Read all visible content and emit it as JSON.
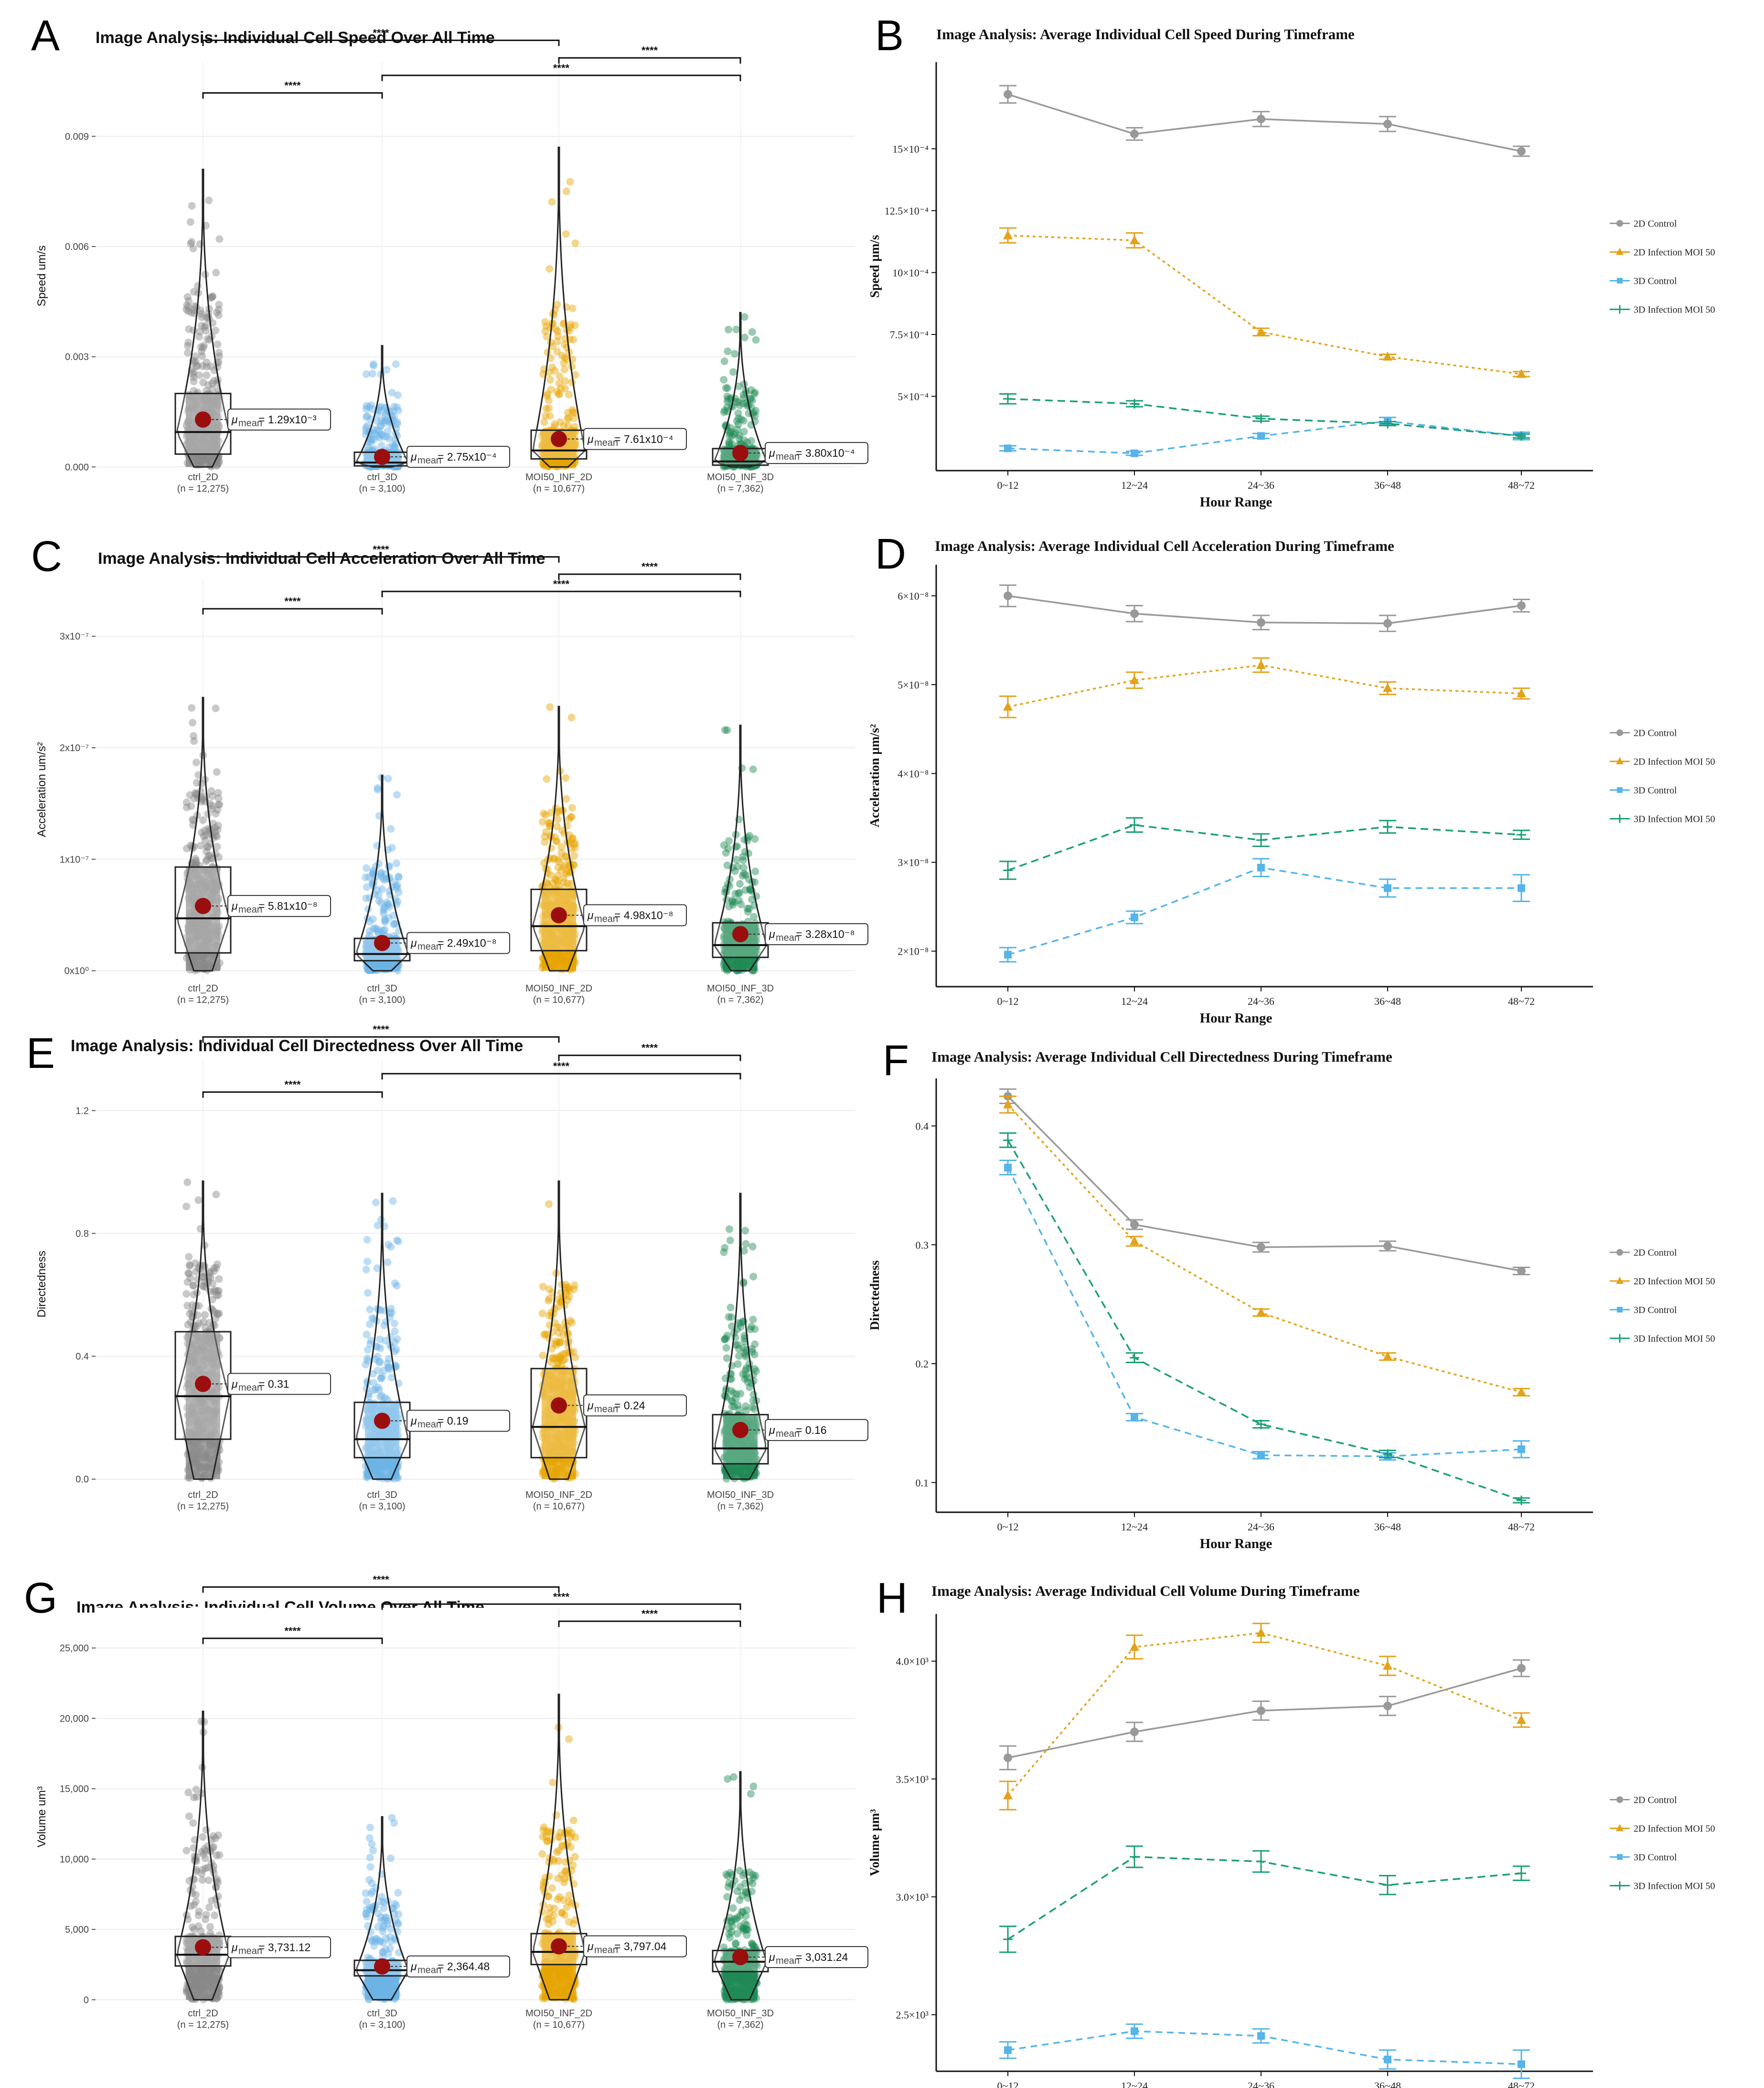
{
  "colors": {
    "ctrl_2D": "#888888",
    "ctrl_3D": "#6cb4e6",
    "MOI50_INF_2D": "#e6a400",
    "MOI50_INF_3D": "#1f8a55",
    "mean_dot": "#9b0e0e",
    "series": [
      "#999999",
      "#e3a21a",
      "#56b4e9",
      "#1a9e77"
    ]
  },
  "legend_entries": [
    "2D Control",
    "2D Infection MOI 50",
    "3D Control",
    "3D Infection MOI 50"
  ],
  "x_range_labels": [
    "0~12",
    "12~24",
    "24~36",
    "36~48",
    "48~72"
  ],
  "x_axis_label": "Hour Range",
  "significance_label": "****",
  "chart_data": [
    {
      "panel": "A",
      "type": "violin+box+jitter",
      "title": "Image Analysis: Individual Cell Speed Over All Time",
      "ylabel": "Speed um/s",
      "ylim": [
        -0.0001,
        0.0105
      ],
      "yticks": [
        0,
        0.003,
        0.006,
        0.009
      ],
      "ytick_labels": [
        "0.000",
        "0.003",
        "0.006",
        "0.009"
      ],
      "categories": [
        "ctrl_2D",
        "ctrl_3D",
        "MOI50_INF_2D",
        "MOI50_INF_3D"
      ],
      "n_labels": [
        "(n = 12,275)",
        "(n = 3,100)",
        "(n = 10,677)",
        "(n = 7,362)"
      ],
      "means": [
        0.00129,
        0.000275,
        0.000761,
        0.00038
      ],
      "mean_labels": [
        "= 1.29x10⁻³",
        "= 2.75x10⁻⁴",
        "= 7.61x10⁻⁴",
        "= 3.80x10⁻⁴"
      ],
      "q1": [
        0.00035,
        3e-05,
        0.00022,
        5e-05
      ],
      "median": [
        0.00095,
        0.00012,
        0.00045,
        0.00015
      ],
      "q3": [
        0.002,
        0.0004,
        0.001,
        0.0005
      ],
      "max": [
        0.0081,
        0.0033,
        0.0087,
        0.0042
      ],
      "comparisons": [
        [
          0,
          1,
          "****"
        ],
        [
          1,
          3,
          "****"
        ],
        [
          2,
          3,
          "****"
        ],
        [
          0,
          2,
          "****"
        ]
      ]
    },
    {
      "panel": "C",
      "type": "violin+box+jitter",
      "title": "Image Analysis: Individual Cell Acceleration Over All Time",
      "ylabel": "Acceleration um/s²",
      "ylim": [
        -1e-08,
        3.35e-07
      ],
      "yticks": [
        0,
        1e-07,
        2e-07,
        3e-07
      ],
      "ytick_labels": [
        "0x10⁰",
        "1x10⁻⁷",
        "2x10⁻⁷",
        "3x10⁻⁷"
      ],
      "categories": [
        "ctrl_2D",
        "ctrl_3D",
        "MOI50_INF_2D",
        "MOI50_INF_3D"
      ],
      "n_labels": [
        "(n = 12,275)",
        "(n = 3,100)",
        "(n = 10,677)",
        "(n = 7,362)"
      ],
      "means": [
        5.81e-08,
        2.49e-08,
        4.98e-08,
        3.28e-08
      ],
      "mean_labels": [
        "= 5.81x10⁻⁸",
        "= 2.49x10⁻⁸",
        "= 4.98x10⁻⁸",
        "= 3.28x10⁻⁸"
      ],
      "q1": [
        1.6e-08,
        9e-09,
        1.8e-08,
        1.2e-08
      ],
      "median": [
        4.7e-08,
        1.5e-08,
        4e-08,
        2.3e-08
      ],
      "q3": [
        9.3e-08,
        2.9e-08,
        7.3e-08,
        4.3e-08
      ],
      "max": [
        2.45e-07,
        1.75e-07,
        2.37e-07,
        2.2e-07
      ],
      "comparisons": [
        [
          0,
          1,
          "****"
        ],
        [
          1,
          3,
          "****"
        ],
        [
          2,
          3,
          "****"
        ],
        [
          0,
          2,
          "****"
        ]
      ]
    },
    {
      "panel": "E",
      "type": "violin+box+jitter",
      "title": "Image Analysis: Individual Cell Directedness Over All Time",
      "ylabel": "Directedness",
      "ylim": [
        -0.03,
        1.3
      ],
      "yticks": [
        0,
        0.4,
        0.8,
        1.2
      ],
      "ytick_labels": [
        "0.0",
        "0.4",
        "0.8",
        "1.2"
      ],
      "categories": [
        "ctrl_2D",
        "ctrl_3D",
        "MOI50_INF_2D",
        "MOI50_INF_3D"
      ],
      "n_labels": [
        "(n = 12,275)",
        "(n = 3,100)",
        "(n = 10,677)",
        "(n = 7,362)"
      ],
      "means": [
        0.31,
        0.19,
        0.24,
        0.16
      ],
      "mean_labels": [
        "= 0.31",
        "= 0.19",
        "= 0.24",
        "= 0.16"
      ],
      "q1": [
        0.13,
        0.07,
        0.07,
        0.05
      ],
      "median": [
        0.27,
        0.13,
        0.17,
        0.1
      ],
      "q3": [
        0.48,
        0.25,
        0.36,
        0.21
      ],
      "max": [
        0.97,
        0.93,
        0.97,
        0.93
      ],
      "comparisons": [
        [
          0,
          1,
          "****"
        ],
        [
          1,
          3,
          "****"
        ],
        [
          2,
          3,
          "****"
        ],
        [
          0,
          2,
          "****"
        ]
      ]
    },
    {
      "panel": "G",
      "type": "violin+box+jitter",
      "title": "Image Analysis: Individual Cell Volume Over All Time",
      "ylabel": "Volume um³",
      "ylim": [
        -500,
        26500
      ],
      "yticks": [
        0,
        5000,
        10000,
        15000,
        20000,
        25000
      ],
      "ytick_labels": [
        "0",
        "5,000",
        "10,000",
        "15,000",
        "20,000",
        "25,000"
      ],
      "categories": [
        "ctrl_2D",
        "ctrl_3D",
        "MOI50_INF_2D",
        "MOI50_INF_3D"
      ],
      "n_labels": [
        "(n = 12,275)",
        "(n = 3,100)",
        "(n = 10,677)",
        "(n = 7,362)"
      ],
      "means": [
        3731.12,
        2364.48,
        3797.04,
        3031.24
      ],
      "mean_labels": [
        "= 3,731.12",
        "= 2,364.48",
        "= 3,797.04",
        "= 3,031.24"
      ],
      "q1": [
        2400,
        1700,
        2500,
        2000
      ],
      "median": [
        3200,
        2100,
        3400,
        2700
      ],
      "q3": [
        4500,
        2800,
        4700,
        3500
      ],
      "max": [
        20500,
        13000,
        21700,
        16200
      ],
      "comparisons": [
        [
          0,
          1,
          "****"
        ],
        [
          2,
          3,
          "****"
        ],
        [
          1,
          3,
          "****"
        ],
        [
          0,
          2,
          "****"
        ]
      ]
    },
    {
      "panel": "B",
      "type": "line",
      "title": "Image Analysis: Average Individual Cell Speed During Timeframe",
      "ylabel": "Speed µm/s",
      "ylim": [
        0.0002,
        0.00185
      ],
      "yticks": [
        0.0005,
        0.00075,
        0.001,
        0.00125,
        0.0015
      ],
      "ytick_labels": [
        "5×10⁻⁴",
        "7.5×10⁻⁴",
        "10×10⁻⁴",
        "12.5×10⁻⁴",
        "15×10⁻⁴"
      ],
      "x": [
        "0~12",
        "12~24",
        "24~36",
        "36~48",
        "48~72"
      ],
      "series": [
        {
          "name": "2D Control",
          "values": [
            0.00172,
            0.00156,
            0.00162,
            0.0016,
            0.00149
          ],
          "err": [
            3.5e-05,
            2.5e-05,
            3e-05,
            3e-05,
            2e-05
          ]
        },
        {
          "name": "2D Infection MOI 50",
          "values": [
            0.00115,
            0.00113,
            0.00076,
            0.00066,
            0.00059
          ],
          "err": [
            3e-05,
            3e-05,
            1.5e-05,
            1e-05,
            1e-05
          ]
        },
        {
          "name": "3D Control",
          "values": [
            0.00029,
            0.00027,
            0.00034,
            0.0004,
            0.00034
          ],
          "err": [
            1e-05,
            8e-06,
            1e-05,
            1.5e-05,
            1.5e-05
          ]
        },
        {
          "name": "3D Infection MOI 50",
          "values": [
            0.00049,
            0.00047,
            0.00041,
            0.00039,
            0.00034
          ],
          "err": [
            2e-05,
            1.2e-05,
            1e-05,
            8e-06,
            8e-06
          ]
        }
      ]
    },
    {
      "panel": "D",
      "type": "line",
      "title": "Image Analysis: Average Individual Cell Acceleration During Timeframe",
      "ylabel": "Acceleration µm/s²",
      "ylim": [
        1.6e-08,
        6.35e-08
      ],
      "yticks": [
        2e-08,
        3e-08,
        4e-08,
        5e-08,
        6e-08
      ],
      "ytick_labels": [
        "2×10⁻⁸",
        "3×10⁻⁸",
        "4×10⁻⁸",
        "5×10⁻⁸",
        "6×10⁻⁸"
      ],
      "x": [
        "0~12",
        "12~24",
        "24~36",
        "36~48",
        "48~72"
      ],
      "series": [
        {
          "name": "2D Control",
          "values": [
            6e-08,
            5.8e-08,
            5.7e-08,
            5.69e-08,
            5.89e-08
          ],
          "err": [
            1.2e-09,
            9e-10,
            8e-10,
            9e-10,
            7e-10
          ]
        },
        {
          "name": "2D Infection MOI 50",
          "values": [
            4.75e-08,
            5.05e-08,
            5.22e-08,
            4.96e-08,
            4.9e-08
          ],
          "err": [
            1.2e-09,
            9e-10,
            8e-10,
            7e-10,
            6e-10
          ]
        },
        {
          "name": "3D Control",
          "values": [
            1.96e-08,
            2.38e-08,
            2.94e-08,
            2.71e-08,
            2.71e-08
          ],
          "err": [
            8e-10,
            7e-10,
            1e-09,
            1e-09,
            1.5e-09
          ]
        },
        {
          "name": "3D Infection MOI 50",
          "values": [
            2.91e-08,
            3.42e-08,
            3.25e-08,
            3.4e-08,
            3.31e-08
          ],
          "err": [
            1e-09,
            8e-10,
            7e-10,
            7e-10,
            5e-10
          ]
        }
      ]
    },
    {
      "panel": "F",
      "type": "line",
      "title": "Image Analysis: Average Individual Cell Directedness During Timeframe",
      "ylabel": "Directedness",
      "ylim": [
        0.075,
        0.44
      ],
      "yticks": [
        0.1,
        0.2,
        0.3,
        0.4
      ],
      "ytick_labels": [
        "0.1",
        "0.2",
        "0.3",
        "0.4"
      ],
      "x": [
        "0~12",
        "12~24",
        "24~36",
        "36~48",
        "48~72"
      ],
      "series": [
        {
          "name": "2D Control",
          "values": [
            0.425,
            0.317,
            0.298,
            0.299,
            0.278
          ],
          "err": [
            0.006,
            0.004,
            0.004,
            0.004,
            0.003
          ]
        },
        {
          "name": "2D Infection MOI 50",
          "values": [
            0.418,
            0.303,
            0.243,
            0.206,
            0.176
          ],
          "err": [
            0.007,
            0.004,
            0.003,
            0.003,
            0.003
          ]
        },
        {
          "name": "3D Control",
          "values": [
            0.365,
            0.155,
            0.123,
            0.122,
            0.128
          ],
          "err": [
            0.006,
            0.003,
            0.003,
            0.003,
            0.007
          ]
        },
        {
          "name": "3D Infection MOI 50",
          "values": [
            0.388,
            0.205,
            0.149,
            0.124,
            0.085
          ],
          "err": [
            0.006,
            0.004,
            0.003,
            0.003,
            0.002
          ]
        }
      ]
    },
    {
      "panel": "H",
      "type": "line",
      "title": "Image Analysis: Average Individual Cell Volume During Timeframe",
      "ylabel": "Volume µm³",
      "ylim": [
        2260.0,
        4200.0
      ],
      "yticks": [
        2500.0,
        3000.0,
        3500.0,
        4000.0
      ],
      "ytick_labels": [
        "2.5×10³",
        "3.0×10³",
        "3.5×10³",
        "4.0×10³"
      ],
      "x": [
        "0~12",
        "12~24",
        "24~36",
        "36~48",
        "48~72"
      ],
      "series": [
        {
          "name": "2D Control",
          "values": [
            3590,
            3700,
            3790,
            3810,
            3970
          ],
          "err": [
            50,
            40,
            40,
            40,
            35
          ]
        },
        {
          "name": "2D Infection MOI 50",
          "values": [
            3430,
            4060,
            4120,
            3980,
            3750
          ],
          "err": [
            60,
            50,
            40,
            40,
            30
          ]
        },
        {
          "name": "3D Control",
          "values": [
            2350,
            2430,
            2410,
            2310,
            2290
          ],
          "err": [
            35,
            30,
            30,
            40,
            60
          ]
        },
        {
          "name": "3D Infection MOI 50",
          "values": [
            2820,
            3170,
            3150,
            3050,
            3100
          ],
          "err": [
            55,
            45,
            45,
            40,
            30
          ]
        }
      ]
    }
  ]
}
